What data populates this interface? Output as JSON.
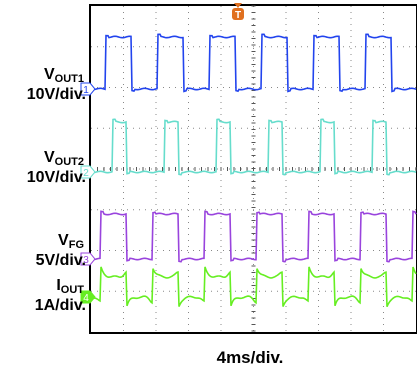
{
  "chart_data": {
    "type": "line",
    "xlabel": "4ms/div.",
    "x_divisions": 10,
    "y_divisions": 8,
    "grid": true,
    "trigger_marker": "T",
    "series": [
      {
        "label_main": "V",
        "label_sub": "OUT1",
        "scale": "10V/div.",
        "channel": "1",
        "color": "#2244ee",
        "kind": "square",
        "period_div": 1.6,
        "duty": 0.5,
        "phase_div": 0.45
      },
      {
        "label_main": "V",
        "label_sub": "OUT2",
        "scale": "10V/div.",
        "channel": "2",
        "color": "#66ddcc",
        "kind": "pulse",
        "period_div": 1.6,
        "duty": 0.28,
        "phase_div": 0.65
      },
      {
        "label_main": "V",
        "label_sub": "FG",
        "scale": "5V/div.",
        "channel": "3",
        "color": "#9944dd",
        "kind": "square",
        "period_div": 1.6,
        "duty": 0.5,
        "phase_div": 0.3
      },
      {
        "label_main": "I",
        "label_sub": "OUT",
        "scale": "1A/div.",
        "channel": "4",
        "color": "#66ee22",
        "kind": "current",
        "period_div": 1.6,
        "duty": 0.5,
        "phase_div": 0.3
      }
    ]
  }
}
